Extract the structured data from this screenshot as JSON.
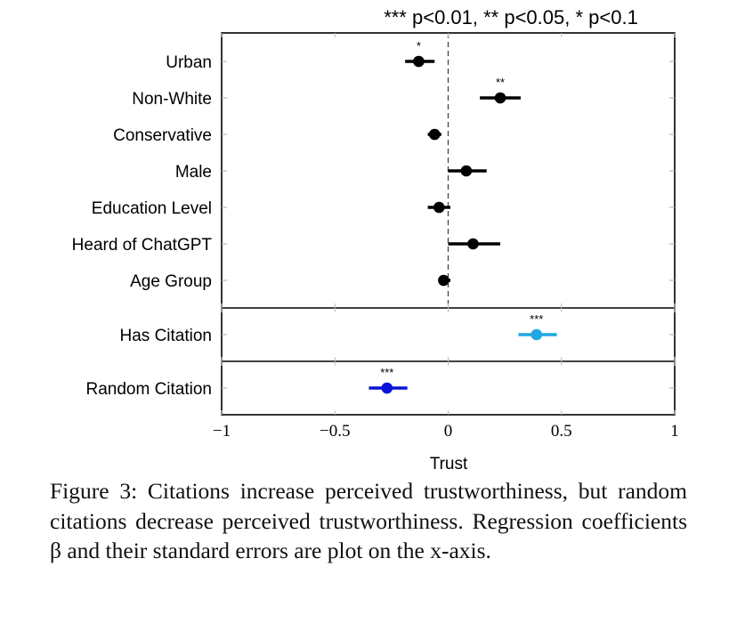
{
  "chart_data": {
    "type": "scatter",
    "subtype": "coefficient-plot",
    "significance_legend": "*** p<0.01, ** p<0.05, * p<0.1",
    "xlabel": "Trust",
    "xlim": [
      -1,
      1
    ],
    "xticks": [
      -1,
      -0.5,
      0,
      0.5,
      1
    ],
    "xtick_labels": [
      "−1",
      "−0.5",
      "0",
      "0.5",
      "1"
    ],
    "reference_line": 0,
    "panels": [
      {
        "rows": [
          {
            "label": "Urban",
            "estimate": -0.13,
            "ci": [
              -0.19,
              -0.06
            ],
            "stars": "*",
            "color": "#000000"
          },
          {
            "label": "Non-White",
            "estimate": 0.23,
            "ci": [
              0.14,
              0.32
            ],
            "stars": "**",
            "color": "#000000"
          },
          {
            "label": "Conservative",
            "estimate": -0.06,
            "ci": [
              -0.09,
              -0.03
            ],
            "stars": "",
            "color": "#000000"
          },
          {
            "label": "Male",
            "estimate": 0.08,
            "ci": [
              0.0,
              0.17
            ],
            "stars": "",
            "color": "#000000"
          },
          {
            "label": "Education Level",
            "estimate": -0.04,
            "ci": [
              -0.09,
              0.01
            ],
            "stars": "",
            "color": "#000000"
          },
          {
            "label": "Heard of ChatGPT",
            "estimate": 0.11,
            "ci": [
              0.0,
              0.23
            ],
            "stars": "",
            "color": "#000000"
          },
          {
            "label": "Age Group",
            "estimate": -0.02,
            "ci": [
              -0.04,
              0.01
            ],
            "stars": "",
            "color": "#000000"
          }
        ]
      },
      {
        "rows": [
          {
            "label": "Has Citation",
            "estimate": 0.39,
            "ci": [
              0.31,
              0.48
            ],
            "stars": "***",
            "color": "#1ea7e1"
          }
        ]
      },
      {
        "rows": [
          {
            "label": "Random Citation",
            "estimate": -0.27,
            "ci": [
              -0.35,
              -0.18
            ],
            "stars": "***",
            "color": "#0a14d6"
          }
        ]
      }
    ],
    "grid": false,
    "legend": "top"
  },
  "caption": "Figure 3: Citations increase perceived trustworthiness, but random citations decrease perceived trustworthiness. Regression coefficients β and their standard errors are plot on the x-axis."
}
